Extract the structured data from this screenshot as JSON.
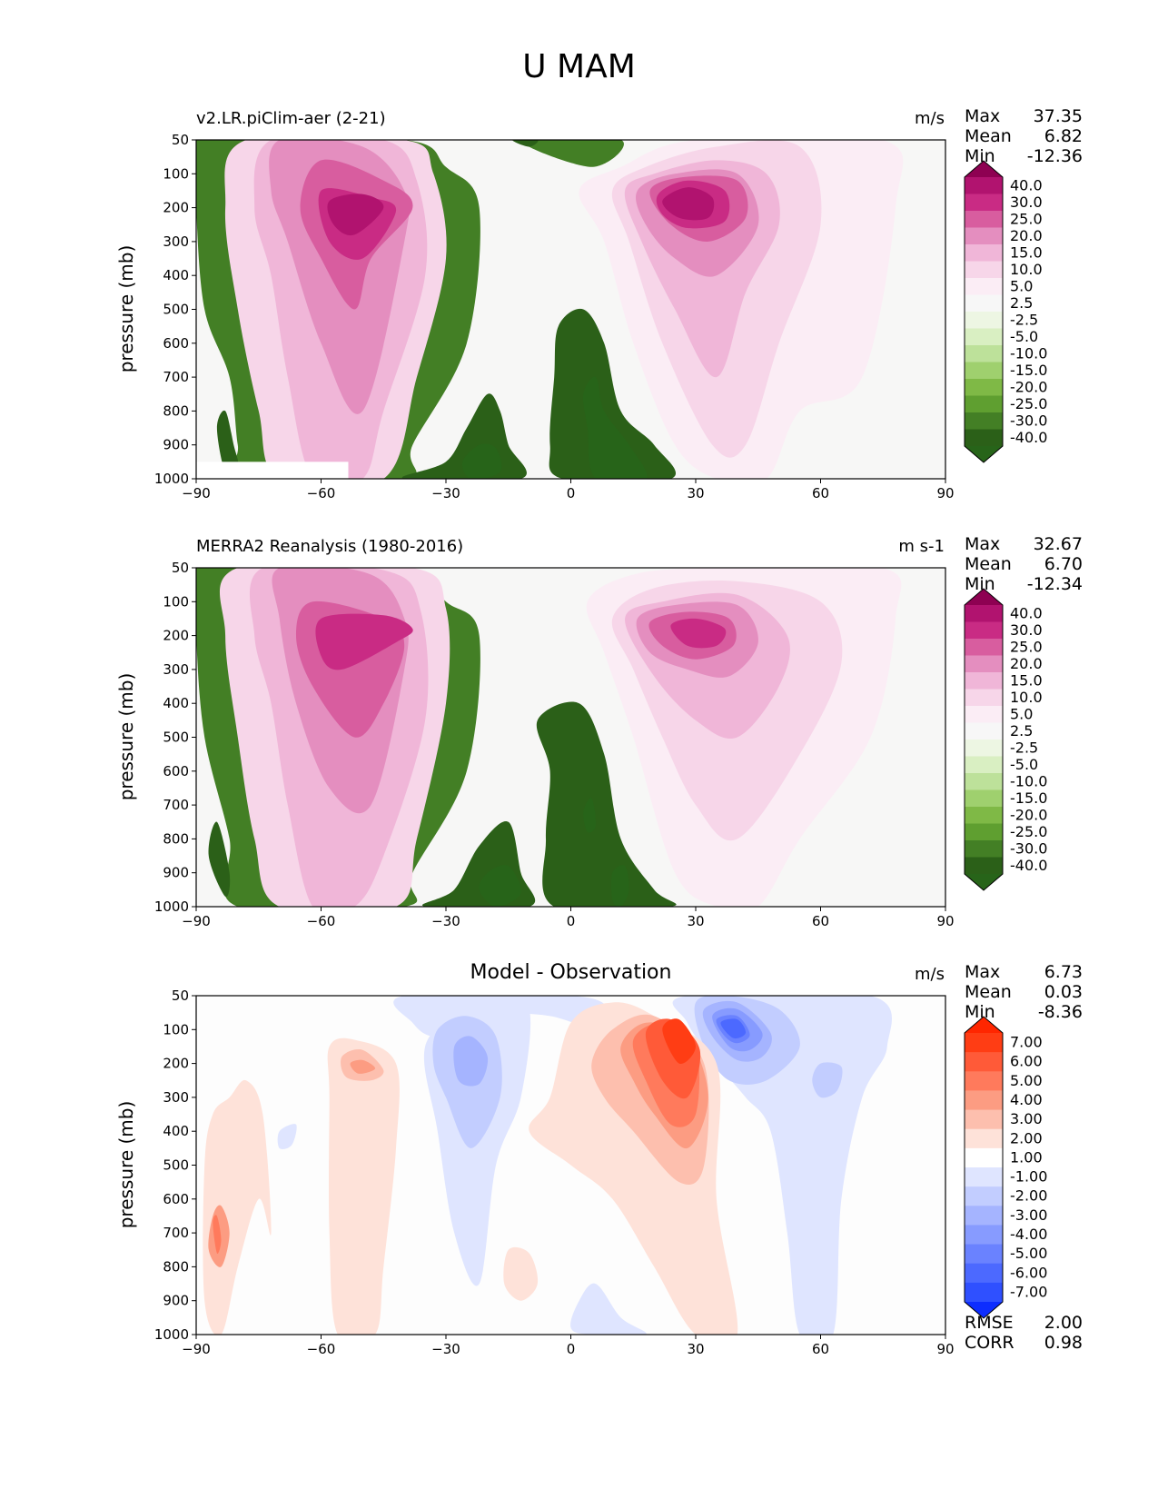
{
  "title": "U MAM",
  "panels": [
    {
      "title": "v2.LR.piClim-aer (2-21)",
      "title_style": "left",
      "units": "m/s",
      "stats": [
        {
          "label": "Max",
          "value": "37.35"
        },
        {
          "label": "Mean",
          "value": "6.82"
        },
        {
          "label": "Min",
          "value": "-12.36"
        }
      ],
      "extra_stats": [],
      "ylabel": "pressure (mb)",
      "xticks": [
        "−90",
        "−60",
        "−30",
        "0",
        "30",
        "60",
        "90"
      ],
      "yticks": [
        "50",
        "100",
        "200",
        "300",
        "400",
        "500",
        "600",
        "700",
        "800",
        "900",
        "1000"
      ],
      "colorbar": {
        "labels": [
          "40.0",
          "30.0",
          "25.0",
          "20.0",
          "15.0",
          "10.0",
          "5.0",
          "2.5",
          "-2.5",
          "-5.0",
          "-10.0",
          "-15.0",
          "-20.0",
          "-25.0",
          "-30.0",
          "-40.0"
        ],
        "colors": [
          "#8e0152",
          "#b1136f",
          "#c92b84",
          "#d85d9f",
          "#e48ebf",
          "#f0b6d8",
          "#f7d6e9",
          "#fbedf5",
          "#f7f7f7",
          "#edf6e3",
          "#d9efc2",
          "#bde19a",
          "#9fd06e",
          "#7fb946",
          "#5f9f30",
          "#437f25",
          "#2b6018",
          "#276419"
        ]
      }
    },
    {
      "title": "MERRA2 Reanalysis (1980-2016)",
      "title_style": "left",
      "units": "m s-1",
      "stats": [
        {
          "label": "Max",
          "value": "32.67"
        },
        {
          "label": "Mean",
          "value": "6.70"
        },
        {
          "label": "Min",
          "value": "-12.34"
        }
      ],
      "extra_stats": [],
      "ylabel": "pressure (mb)",
      "xticks": [
        "−90",
        "−60",
        "−30",
        "0",
        "30",
        "60",
        "90"
      ],
      "yticks": [
        "50",
        "100",
        "200",
        "300",
        "400",
        "500",
        "600",
        "700",
        "800",
        "900",
        "1000"
      ],
      "colorbar": {
        "labels": [
          "40.0",
          "30.0",
          "25.0",
          "20.0",
          "15.0",
          "10.0",
          "5.0",
          "2.5",
          "-2.5",
          "-5.0",
          "-10.0",
          "-15.0",
          "-20.0",
          "-25.0",
          "-30.0",
          "-40.0"
        ],
        "colors": [
          "#8e0152",
          "#b1136f",
          "#c92b84",
          "#d85d9f",
          "#e48ebf",
          "#f0b6d8",
          "#f7d6e9",
          "#fbedf5",
          "#f7f7f7",
          "#edf6e3",
          "#d9efc2",
          "#bde19a",
          "#9fd06e",
          "#7fb946",
          "#5f9f30",
          "#437f25",
          "#2b6018",
          "#276419"
        ]
      }
    },
    {
      "title": "Model - Observation",
      "title_style": "center",
      "units": "m/s",
      "stats": [
        {
          "label": "Max",
          "value": "6.73"
        },
        {
          "label": "Mean",
          "value": "0.03"
        },
        {
          "label": "Min",
          "value": "-8.36"
        }
      ],
      "extra_stats": [
        {
          "label": "RMSE",
          "value": "2.00"
        },
        {
          "label": "CORR",
          "value": "0.98"
        }
      ],
      "ylabel": "pressure (mb)",
      "xticks": [
        "−90",
        "−60",
        "−30",
        "0",
        "30",
        "60",
        "90"
      ],
      "yticks": [
        "50",
        "100",
        "200",
        "300",
        "400",
        "500",
        "600",
        "700",
        "800",
        "900",
        "1000"
      ],
      "colorbar": {
        "labels": [
          "7.00",
          "6.00",
          "5.00",
          "4.00",
          "3.00",
          "2.00",
          "1.00",
          "-1.00",
          "-2.00",
          "-3.00",
          "-4.00",
          "-5.00",
          "-6.00",
          "-7.00"
        ],
        "colors": [
          "#ff2600",
          "#ff3d14",
          "#ff5a38",
          "#ff7a5c",
          "#fc9c82",
          "#fdbfae",
          "#fee2d9",
          "#ffffff",
          "#dfe5ff",
          "#c2cdff",
          "#a5b4ff",
          "#879bff",
          "#6a82ff",
          "#4c69ff",
          "#2f50ff",
          "#0d2dff"
        ]
      }
    }
  ],
  "chart_data": [
    {
      "type": "contour",
      "title": "v2.LR.piClim-aer (2-21)",
      "variable": "U",
      "season": "MAM",
      "units": "m/s",
      "xlabel": "",
      "ylabel": "pressure (mb)",
      "xlim": [
        -90,
        90
      ],
      "ylim": [
        1000,
        50
      ],
      "yaxis_inverted": true,
      "levels": [
        -40,
        -30,
        -25,
        -20,
        -15,
        -10,
        -5,
        -2.5,
        2.5,
        5,
        10,
        15,
        20,
        25,
        30,
        40
      ],
      "stats": {
        "max": 37.35,
        "mean": 6.82,
        "min": -12.36
      },
      "features": [
        {
          "kind": "jet maximum",
          "lat": -50,
          "pressure": 200,
          "approx_value": 30
        },
        {
          "kind": "jet maximum",
          "lat": 26,
          "pressure": 200,
          "approx_value": 35
        },
        {
          "kind": "easterly minimum",
          "lat": -20,
          "pressure": 950,
          "approx_value": -7
        },
        {
          "kind": "easterly minimum",
          "lat": 5,
          "pressure": 850,
          "approx_value": -5
        },
        {
          "kind": "easterly minimum",
          "lat": -87,
          "pressure": 850,
          "approx_value": -10
        }
      ]
    },
    {
      "type": "contour",
      "title": "MERRA2 Reanalysis (1980-2016)",
      "variable": "U",
      "season": "MAM",
      "units": "m s-1",
      "xlabel": "",
      "ylabel": "pressure (mb)",
      "xlim": [
        -90,
        90
      ],
      "ylim": [
        1000,
        50
      ],
      "yaxis_inverted": true,
      "levels": [
        -40,
        -30,
        -25,
        -20,
        -15,
        -10,
        -5,
        -2.5,
        2.5,
        5,
        10,
        15,
        20,
        25,
        30,
        40
      ],
      "stats": {
        "max": 32.67,
        "mean": 6.7,
        "min": -12.34
      },
      "features": [
        {
          "kind": "jet maximum",
          "lat": -45,
          "pressure": 220,
          "approx_value": 27
        },
        {
          "kind": "jet maximum",
          "lat": 30,
          "pressure": 200,
          "approx_value": 32
        },
        {
          "kind": "easterly minimum",
          "lat": -18,
          "pressure": 920,
          "approx_value": -7
        },
        {
          "kind": "easterly minimum",
          "lat": -87,
          "pressure": 850,
          "approx_value": -10
        }
      ]
    },
    {
      "type": "contour",
      "title": "Model - Observation",
      "variable": "U",
      "season": "MAM",
      "units": "m/s",
      "xlabel": "",
      "ylabel": "pressure (mb)",
      "xlim": [
        -90,
        90
      ],
      "ylim": [
        1000,
        50
      ],
      "yaxis_inverted": true,
      "levels": [
        -7,
        -6,
        -5,
        -4,
        -3,
        -2,
        -1,
        1,
        2,
        3,
        4,
        5,
        6,
        7
      ],
      "stats": {
        "max": 6.73,
        "mean": 0.03,
        "min": -8.36,
        "rmse": 2.0,
        "corr": 0.98
      },
      "features": [
        {
          "kind": "positive anomaly",
          "lat": 20,
          "pressure": 150,
          "approx_value": 6.5
        },
        {
          "kind": "negative anomaly",
          "lat": 37,
          "pressure": 100,
          "approx_value": -8
        },
        {
          "kind": "negative anomaly",
          "lat": -27,
          "pressure": 200,
          "approx_value": -4
        },
        {
          "kind": "positive anomaly",
          "lat": -50,
          "pressure": 200,
          "approx_value": 3.5
        },
        {
          "kind": "positive anomaly",
          "lat": -87,
          "pressure": 720,
          "approx_value": 5
        }
      ]
    }
  ]
}
